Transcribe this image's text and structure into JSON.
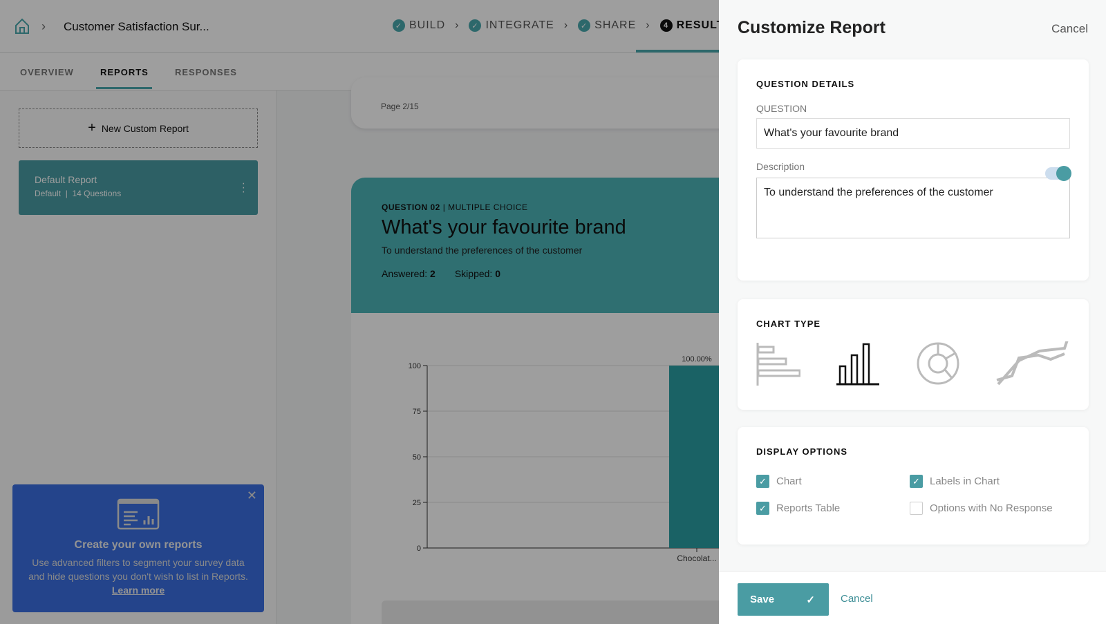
{
  "header": {
    "title": "Customer Satisfaction Sur...",
    "steps": [
      {
        "label": "BUILD",
        "done": true
      },
      {
        "label": "INTEGRATE",
        "done": true
      },
      {
        "label": "SHARE",
        "done": true
      },
      {
        "label": "RESULTS",
        "number": "4",
        "active": true
      }
    ]
  },
  "tabs": [
    {
      "label": "OVERVIEW"
    },
    {
      "label": "REPORTS",
      "active": true
    },
    {
      "label": "RESPONSES"
    }
  ],
  "sidebar": {
    "new_report": "New Custom Report",
    "reports": [
      {
        "name": "Default Report",
        "type": "Default",
        "questions": "14 Questions"
      }
    ],
    "promo": {
      "title": "Create your own reports",
      "body": "Use advanced filters to segment your survey data and hide questions you don't wish to list in Reports.",
      "link": "Learn more"
    }
  },
  "main": {
    "page": "Page 2/15",
    "question": {
      "number": "QUESTION 02",
      "type": "MULTIPLE CHOICE",
      "title": "What's your favourite brand",
      "description": "To understand the preferences of the customer",
      "answered_label": "Answered:",
      "answered": "2",
      "skipped_label": "Skipped:",
      "skipped": "0"
    }
  },
  "chart_data": {
    "type": "bar",
    "categories": [
      "Chocolat..."
    ],
    "values": [
      100
    ],
    "data_labels": [
      "100.00%"
    ],
    "ylim": [
      0,
      100
    ],
    "yticks": [
      0,
      25,
      50,
      75,
      100
    ],
    "grid": true,
    "color": "#2a9fa3"
  },
  "panel": {
    "title": "Customize Report",
    "cancel": "Cancel",
    "question_details": {
      "heading": "QUESTION DETAILS",
      "question_label": "QUESTION",
      "question_value": "What's your favourite brand",
      "description_label": "Description",
      "description_enabled": true,
      "description_value": "To understand the preferences of the customer"
    },
    "chart_type": {
      "heading": "CHART TYPE",
      "options": [
        "horizontal-bar",
        "vertical-bar",
        "donut",
        "line"
      ],
      "selected": "vertical-bar"
    },
    "display_options": {
      "heading": "DISPLAY OPTIONS",
      "options": [
        {
          "label": "Chart",
          "checked": true
        },
        {
          "label": "Labels in Chart",
          "checked": true
        },
        {
          "label": "Reports Table",
          "checked": true
        },
        {
          "label": "Options with No Response",
          "checked": false
        }
      ]
    },
    "footer": {
      "save": "Save",
      "cancel": "Cancel"
    }
  },
  "colors": {
    "accent": "#4a9ca3",
    "promo": "#3a6ee0"
  }
}
